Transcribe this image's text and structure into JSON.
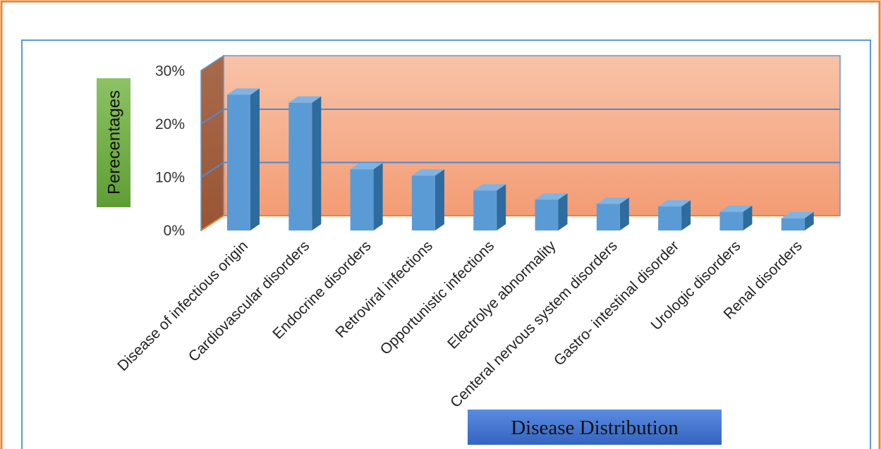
{
  "chart_data": {
    "type": "bar",
    "title": "",
    "xlabel": "Disease Distribution",
    "ylabel": "Perecentages",
    "ylim": [
      0,
      30
    ],
    "yticks": [
      "0%",
      "10%",
      "20%",
      "30%"
    ],
    "grid": true,
    "legend": "none",
    "categories": [
      "Disease of infectious origin",
      "Cardiovascular disorders",
      "Endocrine disorders",
      "Retroviral infections",
      "Opportunistic infections",
      "Electrolye abnormality",
      "Centeral nervous system disorders",
      "Gastro- intestinal disorder",
      "Urologic disorders",
      "Renal disorders"
    ],
    "values": [
      25.5,
      24,
      11.5,
      10.3,
      7.5,
      5.8,
      5,
      4.5,
      3.5,
      2.3
    ],
    "colors": {
      "bar_front": "#5b9bd5",
      "bar_side": "#2e6b9e",
      "bar_top": "#7fb3e3",
      "back_wall_top": "#f8c0a4",
      "back_wall_bottom": "#f4a07a",
      "side_wall": "#a0603f",
      "gridline": "#4f8ad0",
      "outer_border": "#e8852e",
      "plot_border": "#5b9bd5",
      "ylabel_box": "#70ad47",
      "xlabel_box": "#4472c4"
    }
  }
}
